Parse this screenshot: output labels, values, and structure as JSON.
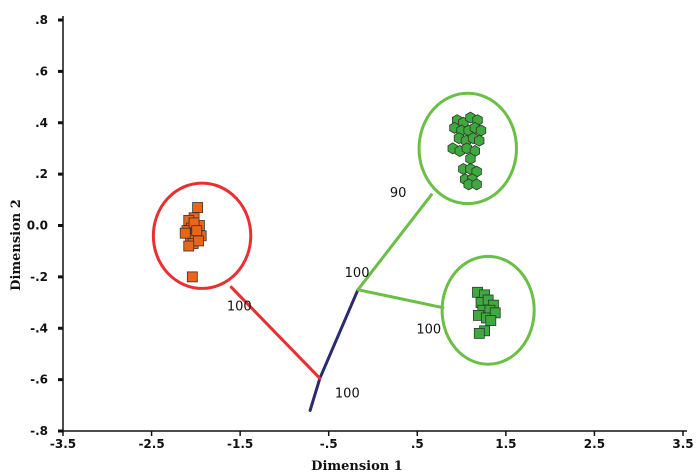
{
  "chart_data": {
    "type": "scatter",
    "xlabel": "Dimension 1",
    "ylabel": "Dimension 2",
    "xlim": [
      -3.5,
      3.5
    ],
    "ylim": [
      -0.8,
      0.8
    ],
    "x_ticks": [
      {
        "value": -3.5,
        "label": "-3.5"
      },
      {
        "value": -2.5,
        "label": "-2.5"
      },
      {
        "value": -1.5,
        "label": "-1.5"
      },
      {
        "value": -0.5,
        "label": "-.5"
      },
      {
        "value": 0.5,
        "label": ".5"
      },
      {
        "value": 1.5,
        "label": "1.5"
      },
      {
        "value": 2.5,
        "label": "2.5"
      },
      {
        "value": 3.5,
        "label": "3.5"
      }
    ],
    "y_ticks": [
      {
        "value": 0.8,
        "label": ".8"
      },
      {
        "value": 0.6,
        "label": ".6"
      },
      {
        "value": 0.4,
        "label": ".4"
      },
      {
        "value": 0.2,
        "label": ".2"
      },
      {
        "value": 0.0,
        "label": "0.0"
      },
      {
        "value": -0.2,
        "label": "-.2"
      },
      {
        "value": -0.4,
        "label": "-.4"
      },
      {
        "value": -0.6,
        "label": "-.6"
      },
      {
        "value": -0.8,
        "label": "-.8"
      }
    ],
    "series": [
      {
        "marker": "square",
        "color": "#e8651a",
        "points": [
          [
            -1.98,
            0.07
          ],
          [
            -2.02,
            0.03
          ],
          [
            -2.08,
            0.02
          ],
          [
            -1.96,
            0.0
          ],
          [
            -2.05,
            -0.01
          ],
          [
            -2.1,
            -0.02
          ],
          [
            -2.0,
            -0.03
          ],
          [
            -1.94,
            -0.04
          ],
          [
            -2.06,
            -0.05
          ],
          [
            -2.12,
            -0.03
          ],
          [
            -2.03,
            -0.07
          ],
          [
            -1.97,
            -0.06
          ],
          [
            -2.08,
            -0.08
          ],
          [
            -2.02,
            0.01
          ],
          [
            -1.99,
            -0.02
          ],
          [
            -2.04,
            -0.2
          ]
        ]
      },
      {
        "marker": "hexagon",
        "color": "#3caa3c",
        "points": [
          [
            0.95,
            0.41
          ],
          [
            1.02,
            0.4
          ],
          [
            1.1,
            0.42
          ],
          [
            1.18,
            0.41
          ],
          [
            0.92,
            0.38
          ],
          [
            1.0,
            0.37
          ],
          [
            1.08,
            0.37
          ],
          [
            1.15,
            0.38
          ],
          [
            1.22,
            0.37
          ],
          [
            0.97,
            0.34
          ],
          [
            1.05,
            0.33
          ],
          [
            1.13,
            0.34
          ],
          [
            1.2,
            0.33
          ],
          [
            0.9,
            0.3
          ],
          [
            0.98,
            0.29
          ],
          [
            1.06,
            0.3
          ],
          [
            1.15,
            0.29
          ],
          [
            1.1,
            0.26
          ],
          [
            1.02,
            0.22
          ],
          [
            1.1,
            0.22
          ],
          [
            1.17,
            0.21
          ],
          [
            1.04,
            0.18
          ],
          [
            1.12,
            0.18
          ],
          [
            1.08,
            0.16
          ],
          [
            1.17,
            0.16
          ]
        ]
      },
      {
        "marker": "square",
        "color": "#3caa3c",
        "points": [
          [
            1.18,
            -0.26
          ],
          [
            1.26,
            -0.27
          ],
          [
            1.22,
            -0.3
          ],
          [
            1.3,
            -0.29
          ],
          [
            1.36,
            -0.31
          ],
          [
            1.24,
            -0.33
          ],
          [
            1.32,
            -0.33
          ],
          [
            1.19,
            -0.35
          ],
          [
            1.28,
            -0.36
          ],
          [
            1.38,
            -0.34
          ],
          [
            1.33,
            -0.37
          ],
          [
            1.26,
            -0.41
          ],
          [
            1.2,
            -0.42
          ]
        ]
      }
    ],
    "clusters": [
      {
        "cx": -1.93,
        "cy": -0.04,
        "rx": 0.55,
        "ry": 0.205,
        "color": "#e83030"
      },
      {
        "cx": 1.07,
        "cy": 0.3,
        "rx": 0.55,
        "ry": 0.215,
        "color": "#6abf45"
      },
      {
        "cx": 1.3,
        "cy": -0.33,
        "rx": 0.52,
        "ry": 0.21,
        "color": "#6abf45"
      }
    ],
    "tree_edges": [
      {
        "from": [
          -0.71,
          -0.72
        ],
        "to": [
          -0.6,
          -0.595
        ],
        "color": "#2a2a6e"
      },
      {
        "from": [
          -0.6,
          -0.595
        ],
        "to": [
          -0.17,
          -0.25
        ],
        "color": "#2a2a6e"
      },
      {
        "from": [
          -0.6,
          -0.595
        ],
        "to": [
          -1.6,
          -0.24
        ],
        "color": "#e83030"
      },
      {
        "from": [
          -0.17,
          -0.25
        ],
        "to": [
          0.66,
          0.12
        ],
        "color": "#6abf45"
      },
      {
        "from": [
          -0.17,
          -0.25
        ],
        "to": [
          0.79,
          -0.32
        ],
        "color": "#6abf45"
      }
    ],
    "annotations": [
      {
        "text": "100",
        "x": -1.65,
        "y": -0.33
      },
      {
        "text": "100",
        "x": -0.43,
        "y": -0.67
      },
      {
        "text": "100",
        "x": -0.32,
        "y": -0.2
      },
      {
        "text": "90",
        "x": 0.19,
        "y": 0.11
      },
      {
        "text": "100",
        "x": 0.49,
        "y": -0.42
      }
    ]
  }
}
